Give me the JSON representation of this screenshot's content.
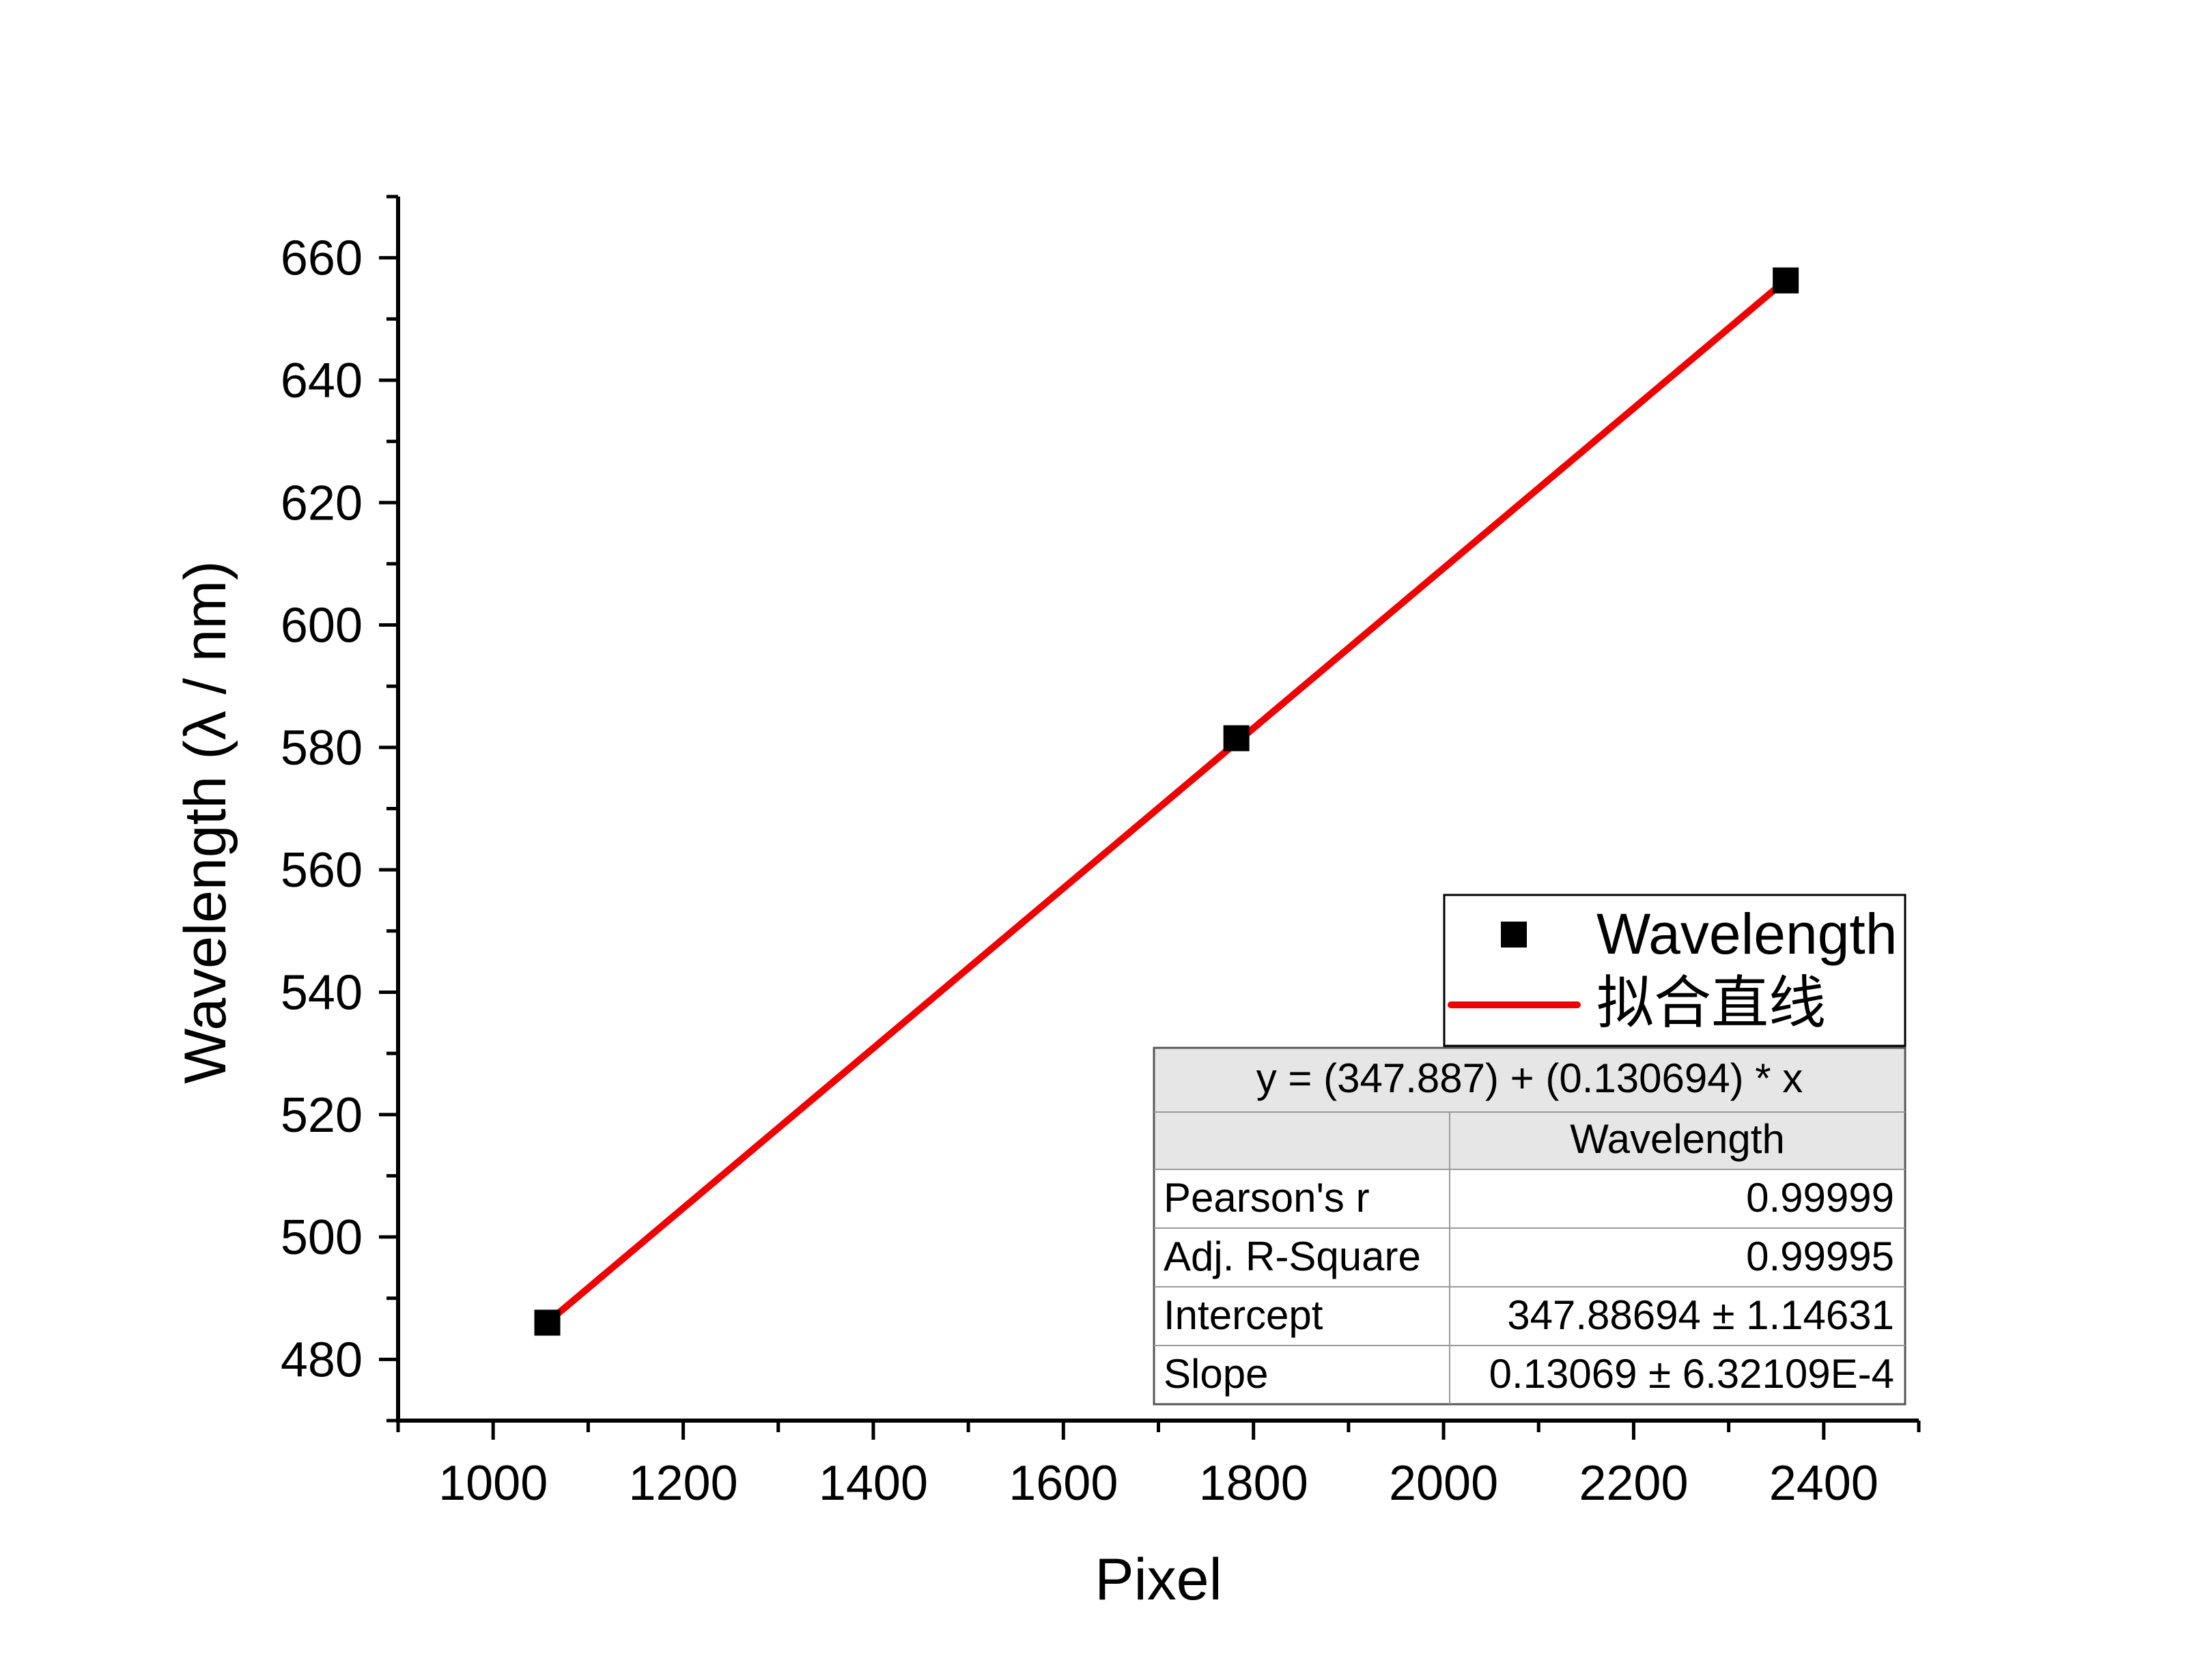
{
  "chart_data": {
    "type": "scatter",
    "xlabel": "Pixel",
    "ylabel": "Wavelength (λ / nm)",
    "xlim": [
      900,
      2500
    ],
    "ylim": [
      470,
      670
    ],
    "x_ticks": [
      1000,
      1200,
      1400,
      1600,
      1800,
      2000,
      2200,
      2400
    ],
    "x_minor_step": 100,
    "y_ticks": [
      480,
      500,
      520,
      540,
      560,
      580,
      600,
      620,
      640,
      660
    ],
    "y_minor_step": 10,
    "grid": false,
    "series": [
      {
        "name": "Wavelength",
        "kind": "scatter",
        "marker": "square",
        "color": "#000000",
        "points": [
          {
            "x": 1057,
            "y": 486
          },
          {
            "x": 1782,
            "y": 581.5
          },
          {
            "x": 2360,
            "y": 656.3
          }
        ]
      },
      {
        "name": "拟合直线",
        "kind": "line",
        "color": "#ee0000",
        "intercept": 347.887,
        "slope": 0.130694,
        "x_range": [
          1057,
          2360
        ]
      }
    ],
    "legend": {
      "position": "bottom-right",
      "entries": [
        "Wavelength",
        "拟合直线"
      ]
    },
    "fit_table": {
      "equation": "y = (347.887) + (0.130694) * x",
      "column_header": "Wavelength",
      "rows": [
        {
          "label": "Pearson's r",
          "value": "0.99999"
        },
        {
          "label": "Adj. R-Square",
          "value": "0.99995"
        },
        {
          "label": "Intercept",
          "value": "347.88694 ± 1.14631"
        },
        {
          "label": "Slope",
          "value": "0.13069 ± 6.32109E-4"
        }
      ]
    }
  }
}
